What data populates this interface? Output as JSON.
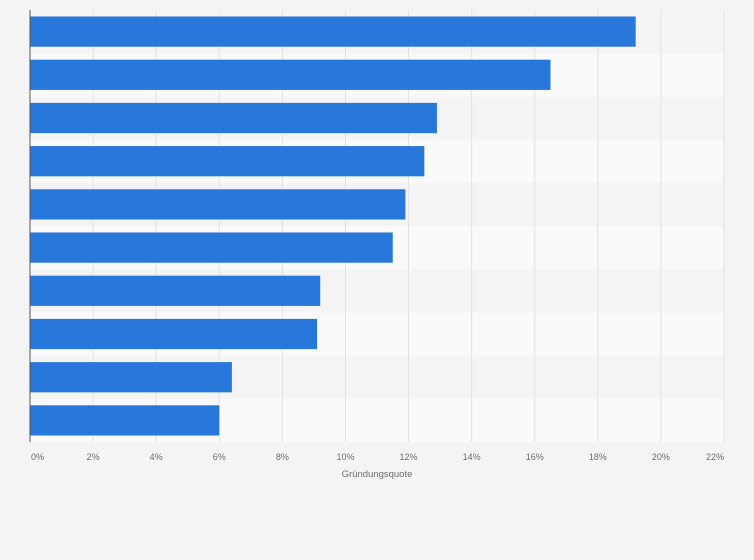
{
  "chart_data": {
    "type": "bar",
    "orientation": "horizontal",
    "categories": [
      "",
      "",
      "",
      "",
      "",
      "",
      "",
      "",
      "",
      ""
    ],
    "values": [
      19.2,
      16.5,
      12.9,
      12.5,
      11.9,
      11.5,
      9.2,
      9.1,
      6.4,
      6.0
    ],
    "title": "",
    "xlabel": "Gründungsquote",
    "ylabel": "",
    "xlim": [
      0,
      22
    ],
    "x_ticks": [
      "0%",
      "2%",
      "4%",
      "6%",
      "8%",
      "10%",
      "12%",
      "14%",
      "16%",
      "18%",
      "20%",
      "22%"
    ],
    "grid": true,
    "bar_color": "#2878dc"
  }
}
